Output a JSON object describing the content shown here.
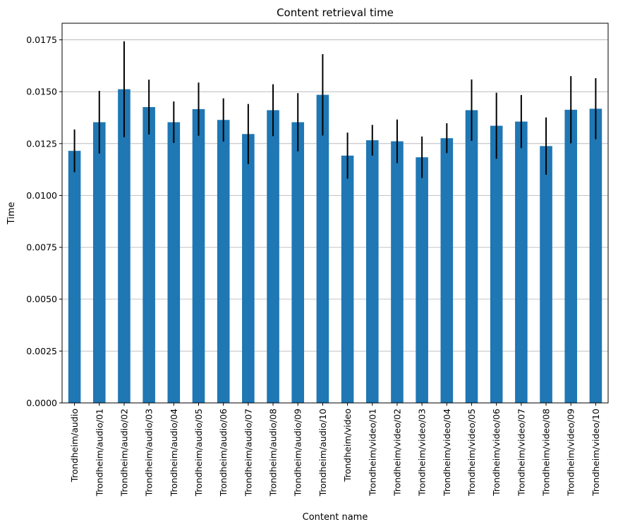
{
  "chart_data": {
    "type": "bar",
    "title": "Content retrieval time",
    "xlabel": "Content name",
    "ylabel": "Time",
    "ylim": [
      0,
      0.0183
    ],
    "yticks": [
      "0.0000",
      "0.0025",
      "0.0050",
      "0.0075",
      "0.0100",
      "0.0125",
      "0.0150",
      "0.0175"
    ],
    "grid": "horizontal",
    "bar_color": "#1f77b4",
    "error_color": "#000000",
    "categories": [
      "Trondheim/audio",
      "Trondheim/audio/01",
      "Trondheim/audio/02",
      "Trondheim/audio/03",
      "Trondheim/audio/04",
      "Trondheim/audio/05",
      "Trondheim/audio/06",
      "Trondheim/audio/07",
      "Trondheim/audio/08",
      "Trondheim/audio/09",
      "Trondheim/audio/10",
      "Trondheim/video",
      "Trondheim/video/01",
      "Trondheim/video/02",
      "Trondheim/video/03",
      "Trondheim/video/04",
      "Trondheim/video/05",
      "Trondheim/video/06",
      "Trondheim/video/07",
      "Trondheim/video/08",
      "Trondheim/video/09",
      "Trondheim/video/10"
    ],
    "values": [
      0.01215,
      0.01353,
      0.01512,
      0.01426,
      0.01353,
      0.01416,
      0.01364,
      0.01296,
      0.01411,
      0.01353,
      0.01485,
      0.01192,
      0.01266,
      0.01261,
      0.01184,
      0.01276,
      0.01411,
      0.01336,
      0.01356,
      0.01238,
      0.01413,
      0.01418
    ],
    "errors": [
      0.00103,
      0.00151,
      0.00231,
      0.00132,
      0.001,
      0.00128,
      0.00104,
      0.00145,
      0.00125,
      0.0014,
      0.00196,
      0.00111,
      0.00074,
      0.00105,
      0.001,
      0.00072,
      0.00148,
      0.00159,
      0.00128,
      0.00138,
      0.00162,
      0.00147
    ]
  }
}
